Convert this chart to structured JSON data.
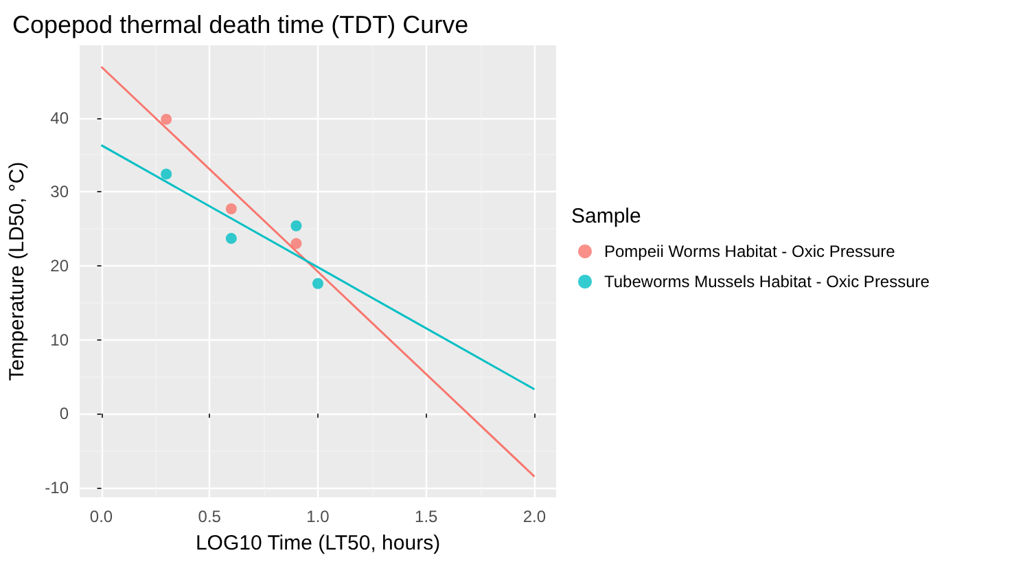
{
  "chart_data": {
    "type": "scatter",
    "title": "Copepod thermal death time (TDT) Curve",
    "xlabel": "LOG10 Time (LT50, hours)",
    "ylabel": "Temperature (LD50, °C)",
    "legend_title": "Sample",
    "legend": "right",
    "grid": true,
    "marker": "circle",
    "xlim": [
      -0.1,
      2.1
    ],
    "xticks": [
      {
        "value": 0,
        "label": "0.0"
      },
      0.5,
      {
        "value": 1,
        "label": "1.0"
      },
      1.5,
      {
        "value": 2,
        "label": "2.0"
      }
    ],
    "ylim": [
      -11.3,
      49.8
    ],
    "yticks": [
      -10,
      0,
      10,
      20,
      30,
      40
    ],
    "series": [
      {
        "name": "Pompeii Worms Habitat - Oxic Pressure",
        "color": "#f8766d",
        "x": [
          0.3,
          0.6,
          0.9
        ],
        "values": [
          39.8,
          27.7,
          23.0
        ]
      },
      {
        "name": "Tubeworms Mussels Habitat - Oxic Pressure",
        "color": "#00bfc4",
        "x": [
          0.3,
          0.6,
          0.9,
          1.0
        ],
        "values": [
          32.4,
          23.7,
          25.4,
          17.6
        ]
      },
      {
        "type": "line",
        "marker": "none",
        "color": "#f8766d",
        "x": [
          0,
          2
        ],
        "values": [
          46.9,
          -8.5
        ]
      },
      {
        "type": "line",
        "marker": "none",
        "color": "#00bfc4",
        "x": [
          0,
          2
        ],
        "values": [
          36.3,
          3.3
        ]
      }
    ]
  }
}
